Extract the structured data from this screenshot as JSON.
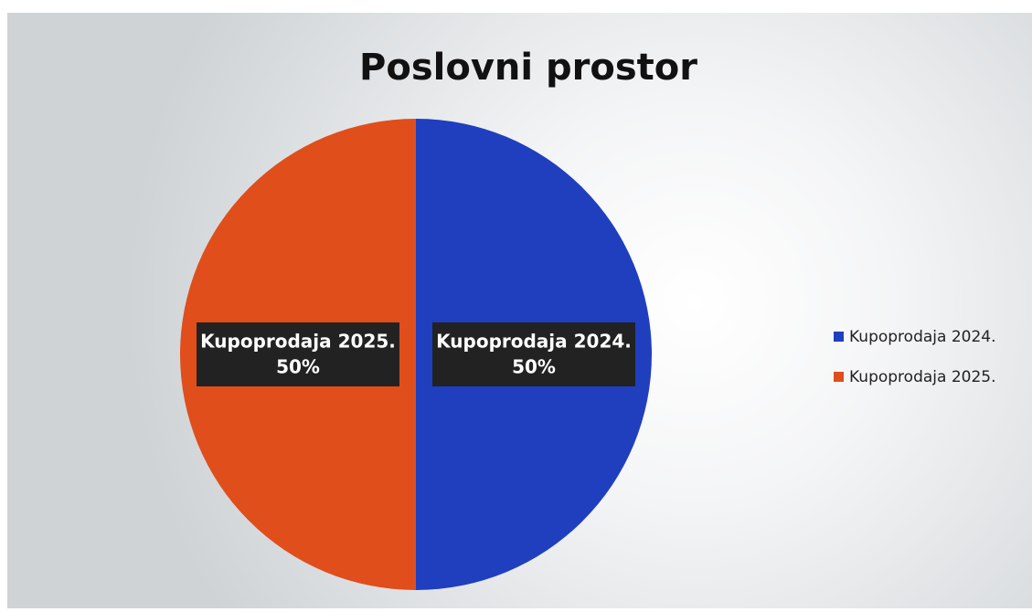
{
  "chart_data": {
    "type": "pie",
    "title": "Poslovni prostor",
    "categories": [
      "Kupoprodaja 2024.",
      "Kupoprodaja 2025."
    ],
    "values": [
      50,
      50
    ],
    "value_labels": [
      "50%",
      "50%"
    ],
    "colors": [
      "#1f3fbf",
      "#e04e1c"
    ],
    "legend": "right"
  }
}
